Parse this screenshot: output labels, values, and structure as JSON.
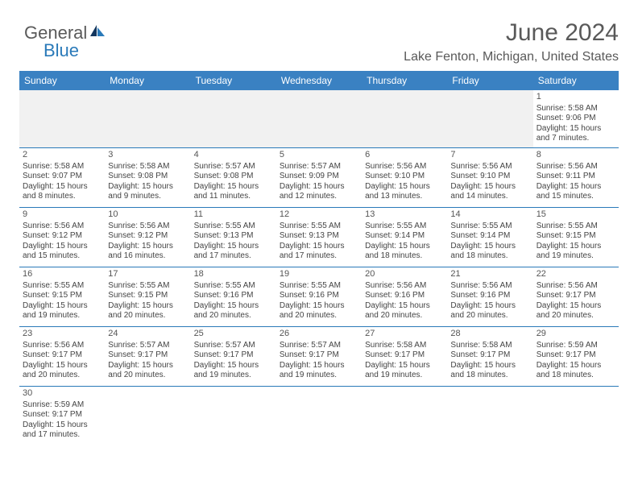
{
  "brand": {
    "part1": "General",
    "part2": "Blue"
  },
  "title": "June 2024",
  "location": "Lake Fenton, Michigan, United States",
  "colors": {
    "header_bg": "#3a81c2",
    "header_text": "#ffffff",
    "border": "#2a7ab9",
    "title_color": "#595959",
    "body_text": "#444444",
    "blank_bg": "#f1f1f1"
  },
  "day_headers": [
    "Sunday",
    "Monday",
    "Tuesday",
    "Wednesday",
    "Thursday",
    "Friday",
    "Saturday"
  ],
  "weeks": [
    [
      null,
      null,
      null,
      null,
      null,
      null,
      {
        "n": "1",
        "sr": "Sunrise: 5:58 AM",
        "ss": "Sunset: 9:06 PM",
        "d1": "Daylight: 15 hours",
        "d2": "and 7 minutes."
      }
    ],
    [
      {
        "n": "2",
        "sr": "Sunrise: 5:58 AM",
        "ss": "Sunset: 9:07 PM",
        "d1": "Daylight: 15 hours",
        "d2": "and 8 minutes."
      },
      {
        "n": "3",
        "sr": "Sunrise: 5:58 AM",
        "ss": "Sunset: 9:08 PM",
        "d1": "Daylight: 15 hours",
        "d2": "and 9 minutes."
      },
      {
        "n": "4",
        "sr": "Sunrise: 5:57 AM",
        "ss": "Sunset: 9:08 PM",
        "d1": "Daylight: 15 hours",
        "d2": "and 11 minutes."
      },
      {
        "n": "5",
        "sr": "Sunrise: 5:57 AM",
        "ss": "Sunset: 9:09 PM",
        "d1": "Daylight: 15 hours",
        "d2": "and 12 minutes."
      },
      {
        "n": "6",
        "sr": "Sunrise: 5:56 AM",
        "ss": "Sunset: 9:10 PM",
        "d1": "Daylight: 15 hours",
        "d2": "and 13 minutes."
      },
      {
        "n": "7",
        "sr": "Sunrise: 5:56 AM",
        "ss": "Sunset: 9:10 PM",
        "d1": "Daylight: 15 hours",
        "d2": "and 14 minutes."
      },
      {
        "n": "8",
        "sr": "Sunrise: 5:56 AM",
        "ss": "Sunset: 9:11 PM",
        "d1": "Daylight: 15 hours",
        "d2": "and 15 minutes."
      }
    ],
    [
      {
        "n": "9",
        "sr": "Sunrise: 5:56 AM",
        "ss": "Sunset: 9:12 PM",
        "d1": "Daylight: 15 hours",
        "d2": "and 15 minutes."
      },
      {
        "n": "10",
        "sr": "Sunrise: 5:56 AM",
        "ss": "Sunset: 9:12 PM",
        "d1": "Daylight: 15 hours",
        "d2": "and 16 minutes."
      },
      {
        "n": "11",
        "sr": "Sunrise: 5:55 AM",
        "ss": "Sunset: 9:13 PM",
        "d1": "Daylight: 15 hours",
        "d2": "and 17 minutes."
      },
      {
        "n": "12",
        "sr": "Sunrise: 5:55 AM",
        "ss": "Sunset: 9:13 PM",
        "d1": "Daylight: 15 hours",
        "d2": "and 17 minutes."
      },
      {
        "n": "13",
        "sr": "Sunrise: 5:55 AM",
        "ss": "Sunset: 9:14 PM",
        "d1": "Daylight: 15 hours",
        "d2": "and 18 minutes."
      },
      {
        "n": "14",
        "sr": "Sunrise: 5:55 AM",
        "ss": "Sunset: 9:14 PM",
        "d1": "Daylight: 15 hours",
        "d2": "and 18 minutes."
      },
      {
        "n": "15",
        "sr": "Sunrise: 5:55 AM",
        "ss": "Sunset: 9:15 PM",
        "d1": "Daylight: 15 hours",
        "d2": "and 19 minutes."
      }
    ],
    [
      {
        "n": "16",
        "sr": "Sunrise: 5:55 AM",
        "ss": "Sunset: 9:15 PM",
        "d1": "Daylight: 15 hours",
        "d2": "and 19 minutes."
      },
      {
        "n": "17",
        "sr": "Sunrise: 5:55 AM",
        "ss": "Sunset: 9:15 PM",
        "d1": "Daylight: 15 hours",
        "d2": "and 20 minutes."
      },
      {
        "n": "18",
        "sr": "Sunrise: 5:55 AM",
        "ss": "Sunset: 9:16 PM",
        "d1": "Daylight: 15 hours",
        "d2": "and 20 minutes."
      },
      {
        "n": "19",
        "sr": "Sunrise: 5:55 AM",
        "ss": "Sunset: 9:16 PM",
        "d1": "Daylight: 15 hours",
        "d2": "and 20 minutes."
      },
      {
        "n": "20",
        "sr": "Sunrise: 5:56 AM",
        "ss": "Sunset: 9:16 PM",
        "d1": "Daylight: 15 hours",
        "d2": "and 20 minutes."
      },
      {
        "n": "21",
        "sr": "Sunrise: 5:56 AM",
        "ss": "Sunset: 9:16 PM",
        "d1": "Daylight: 15 hours",
        "d2": "and 20 minutes."
      },
      {
        "n": "22",
        "sr": "Sunrise: 5:56 AM",
        "ss": "Sunset: 9:17 PM",
        "d1": "Daylight: 15 hours",
        "d2": "and 20 minutes."
      }
    ],
    [
      {
        "n": "23",
        "sr": "Sunrise: 5:56 AM",
        "ss": "Sunset: 9:17 PM",
        "d1": "Daylight: 15 hours",
        "d2": "and 20 minutes."
      },
      {
        "n": "24",
        "sr": "Sunrise: 5:57 AM",
        "ss": "Sunset: 9:17 PM",
        "d1": "Daylight: 15 hours",
        "d2": "and 20 minutes."
      },
      {
        "n": "25",
        "sr": "Sunrise: 5:57 AM",
        "ss": "Sunset: 9:17 PM",
        "d1": "Daylight: 15 hours",
        "d2": "and 19 minutes."
      },
      {
        "n": "26",
        "sr": "Sunrise: 5:57 AM",
        "ss": "Sunset: 9:17 PM",
        "d1": "Daylight: 15 hours",
        "d2": "and 19 minutes."
      },
      {
        "n": "27",
        "sr": "Sunrise: 5:58 AM",
        "ss": "Sunset: 9:17 PM",
        "d1": "Daylight: 15 hours",
        "d2": "and 19 minutes."
      },
      {
        "n": "28",
        "sr": "Sunrise: 5:58 AM",
        "ss": "Sunset: 9:17 PM",
        "d1": "Daylight: 15 hours",
        "d2": "and 18 minutes."
      },
      {
        "n": "29",
        "sr": "Sunrise: 5:59 AM",
        "ss": "Sunset: 9:17 PM",
        "d1": "Daylight: 15 hours",
        "d2": "and 18 minutes."
      }
    ],
    [
      {
        "n": "30",
        "sr": "Sunrise: 5:59 AM",
        "ss": "Sunset: 9:17 PM",
        "d1": "Daylight: 15 hours",
        "d2": "and 17 minutes."
      },
      null,
      null,
      null,
      null,
      null,
      null
    ]
  ]
}
